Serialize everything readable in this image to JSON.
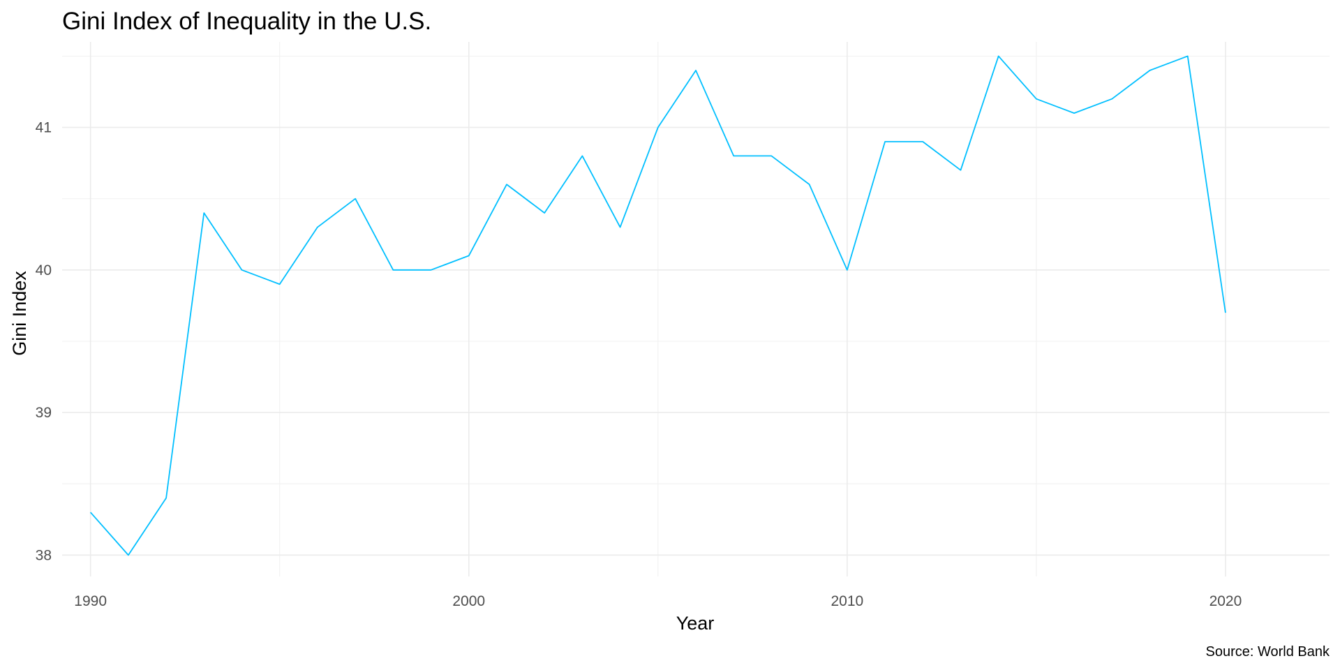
{
  "chart_data": {
    "type": "line",
    "title": "Gini Index of Inequality in the U.S.",
    "xlabel": "Year",
    "ylabel": "Gini Index",
    "caption": "Source: World Bank",
    "xlim": [
      1989.25,
      2022.75
    ],
    "ylim": [
      37.85,
      41.6
    ],
    "x_ticks": [
      1990,
      2000,
      2010,
      2020
    ],
    "y_ticks": [
      38,
      39,
      40,
      41
    ],
    "grid": true,
    "legend": "none",
    "series": [
      {
        "color": "#00BFFF",
        "x": [
          1990,
          1991,
          1992,
          1993,
          1994,
          1995,
          1996,
          1997,
          1998,
          1999,
          2000,
          2001,
          2002,
          2003,
          2004,
          2005,
          2006,
          2007,
          2008,
          2009,
          2010,
          2011,
          2012,
          2013,
          2014,
          2015,
          2016,
          2017,
          2018,
          2019,
          2020
        ],
        "y": [
          38.3,
          38.0,
          38.4,
          40.4,
          40.0,
          39.9,
          40.3,
          40.5,
          40.0,
          40.0,
          40.1,
          40.6,
          40.4,
          40.8,
          40.3,
          41.0,
          41.4,
          40.8,
          40.8,
          40.6,
          40.0,
          40.9,
          40.9,
          40.7,
          41.5,
          41.2,
          41.1,
          41.2,
          41.4,
          41.5,
          39.7
        ]
      }
    ]
  }
}
